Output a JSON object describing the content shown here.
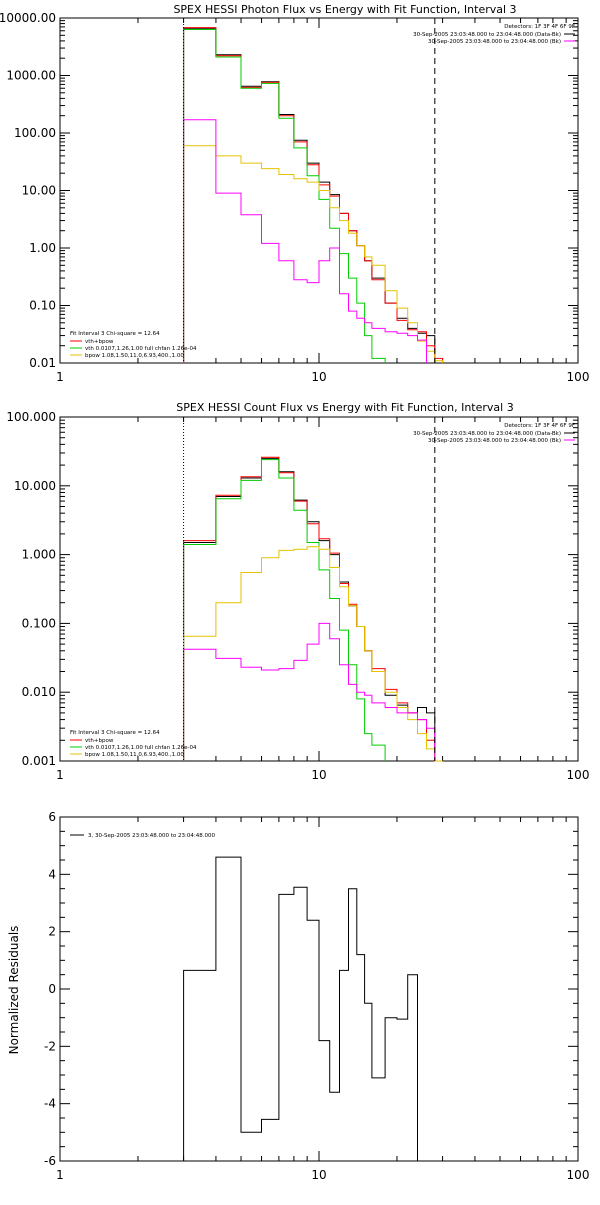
{
  "chart_data": [
    {
      "id": "photon",
      "type": "line",
      "title": "SPEX HESSI Photon Flux vs Energy with Fit Function, Interval 3",
      "xlabel": "",
      "ylabel": "",
      "xscale": "log",
      "yscale": "log",
      "xlim": [
        1,
        100
      ],
      "ylim": [
        0.01,
        10000
      ],
      "xticks": [
        1,
        10,
        100
      ],
      "xtick_labels": [
        "1",
        "10",
        "100"
      ],
      "yticks": [
        0.01,
        0.1,
        1,
        10,
        100,
        1000,
        10000
      ],
      "ytick_labels": [
        "0.01",
        "0.10",
        "1.00",
        "10.00",
        "100.00",
        "1000.00",
        "10000.00"
      ],
      "info_lines": [
        "Detectors: 1F 3F 4F 6F 9F",
        "30-Sep-2005 23:03:48.000 to 23:04:48.000 (Data-Bk)",
        "30-Sep-2005 23:03:48.000 to 23:04:48.000 (Bk)"
      ],
      "info_colors": [
        "",
        "#000000",
        "#ff00ff"
      ],
      "fit_info": "Fit Interval 3   Chi-square = 12.64",
      "legend": [
        "vth+bpow",
        "vth 0.0107,1.26,1.00  full chfan 1.26e-04",
        "bpow 1.08,1.50,11.0,6.93,400.,1.00"
      ],
      "legend_colors": [
        "#ff0000",
        "#00cc00",
        "#e6c200"
      ],
      "vlines": [
        {
          "x": 3.0,
          "style": "dotted"
        },
        {
          "x": 28.0,
          "style": "dashed"
        }
      ],
      "edges": [
        3,
        4,
        5,
        6,
        7,
        8,
        9,
        10,
        11,
        12,
        13,
        14,
        15,
        16,
        18,
        20,
        22,
        24,
        26,
        28,
        30
      ],
      "series": [
        {
          "name": "Data-Bk",
          "color": "#000000",
          "values": [
            6500,
            2300,
            650,
            780,
            210,
            75,
            30,
            14,
            8.5,
            4,
            2,
            1.1,
            0.6,
            0.3,
            0.11,
            0.06,
            0.04,
            0.033,
            0.03,
            null
          ]
        },
        {
          "name": "vth+bpow",
          "color": "#ff0000",
          "values": [
            6800,
            2200,
            620,
            760,
            200,
            70,
            28,
            12.5,
            8,
            4,
            2,
            1.1,
            0.6,
            0.28,
            0.11,
            0.055,
            0.038,
            0.035,
            0.02,
            0.012
          ]
        },
        {
          "name": "vth",
          "color": "#00cc00",
          "values": [
            6300,
            2100,
            600,
            730,
            180,
            55,
            18,
            7,
            2.2,
            0.8,
            0.3,
            0.11,
            0.03,
            0.012,
            null,
            null,
            null,
            null,
            null,
            null
          ]
        },
        {
          "name": "bpow",
          "color": "#e6c200",
          "values": [
            60,
            40,
            30,
            24,
            19,
            16,
            14,
            10,
            5,
            3,
            1.8,
            1.1,
            0.7,
            0.5,
            0.18,
            0.09,
            0.05,
            0.024,
            0.016,
            0.011
          ]
        },
        {
          "name": "Bk",
          "color": "#ff00ff",
          "values": [
            170,
            9,
            3.8,
            1.2,
            0.6,
            0.28,
            0.25,
            0.6,
            1.0,
            0.16,
            0.08,
            0.06,
            0.05,
            0.04,
            0.035,
            0.033,
            0.03,
            0.025,
            null,
            null
          ]
        }
      ]
    },
    {
      "id": "count",
      "type": "line",
      "title": "SPEX HESSI Count Flux vs Energy with Fit Function, Interval 3",
      "xlabel": "",
      "ylabel": "",
      "xscale": "log",
      "yscale": "log",
      "xlim": [
        1,
        100
      ],
      "ylim": [
        0.001,
        100
      ],
      "xticks": [
        1,
        10,
        100
      ],
      "xtick_labels": [
        "1",
        "10",
        "100"
      ],
      "yticks": [
        0.001,
        0.01,
        0.1,
        1,
        10,
        100
      ],
      "ytick_labels": [
        "0.001",
        "0.010",
        "0.100",
        "1.000",
        "10.000",
        "100.000"
      ],
      "info_lines": [
        "Detectors: 1F 3F 4F 6F 9F",
        "30-Sep-2005 23:03:48.000 to 23:04:48.000 (Data-Bk)",
        "30-Sep-2005 23:03:48.000 to 23:04:48.000 (Bk)"
      ],
      "info_colors": [
        "",
        "#000000",
        "#ff00ff"
      ],
      "fit_info": "Fit Interval 3   Chi-square = 12.64",
      "legend": [
        "vth+bpow",
        "vth 0.0107,1.26,1.00  full chfan 1.26e-04",
        "bpow 1.08,1.50,11.0,6.93,400.,1.00"
      ],
      "legend_colors": [
        "#ff0000",
        "#00cc00",
        "#e6c200"
      ],
      "vlines": [
        {
          "x": 3.0,
          "style": "dotted"
        },
        {
          "x": 28.0,
          "style": "dashed"
        }
      ],
      "edges": [
        3,
        4,
        5,
        6,
        7,
        8,
        9,
        10,
        11,
        12,
        13,
        14,
        15,
        16,
        18,
        20,
        22,
        24,
        26,
        28,
        30
      ],
      "series": [
        {
          "name": "Data-Bk",
          "color": "#000000",
          "values": [
            1.5,
            7,
            13,
            25,
            16,
            6.2,
            3,
            1.6,
            1,
            0.4,
            0.18,
            0.09,
            0.04,
            0.02,
            0.009,
            0.0065,
            0.005,
            0.006,
            0.005,
            null
          ]
        },
        {
          "name": "vth+bpow",
          "color": "#ff0000",
          "values": [
            1.6,
            7.3,
            13.5,
            26,
            15.5,
            6,
            2.8,
            1.7,
            1.05,
            0.38,
            0.19,
            0.09,
            0.04,
            0.022,
            0.011,
            0.007,
            0.005,
            0.004,
            0.002,
            0.001
          ]
        },
        {
          "name": "vth",
          "color": "#00cc00",
          "values": [
            1.4,
            6.5,
            12,
            24,
            13,
            4.4,
            1.5,
            0.6,
            0.23,
            0.08,
            0.025,
            0.008,
            0.0025,
            0.0017,
            null,
            null,
            null,
            null,
            null,
            null
          ]
        },
        {
          "name": "bpow",
          "color": "#e6c200",
          "values": [
            0.065,
            0.2,
            0.55,
            0.9,
            1.15,
            1.2,
            1.3,
            1.2,
            0.65,
            0.34,
            0.18,
            0.09,
            0.04,
            0.02,
            0.01,
            0.006,
            0.004,
            0.0025,
            0.0015,
            0.001
          ]
        },
        {
          "name": "Bk",
          "color": "#ff00ff",
          "values": [
            0.042,
            0.031,
            0.023,
            0.021,
            0.022,
            0.029,
            0.05,
            0.1,
            0.06,
            0.025,
            0.013,
            0.01,
            0.009,
            0.007,
            0.006,
            0.005,
            0.005,
            0.004,
            0.003,
            null
          ]
        }
      ]
    },
    {
      "id": "residuals",
      "type": "line",
      "title": "",
      "xlabel": "",
      "ylabel": "Normalized Residuals",
      "xscale": "log",
      "yscale": "linear",
      "xlim": [
        1,
        100
      ],
      "ylim": [
        -6,
        6
      ],
      "xticks": [
        1,
        10,
        100
      ],
      "xtick_labels": [
        "1",
        "10",
        "100"
      ],
      "yticks": [
        -6,
        -4,
        -2,
        0,
        2,
        4,
        6
      ],
      "ytick_labels": [
        "-6",
        "-4",
        "-2",
        "0",
        "2",
        "4",
        "6"
      ],
      "legend": [
        "3, 30-Sep-2005 23:03:48.000 to 23:04:48.000"
      ],
      "legend_colors": [
        "#000000"
      ],
      "edges": [
        3,
        4,
        5,
        6,
        7,
        8,
        9,
        10,
        11,
        12,
        13,
        14,
        15,
        16,
        18,
        20,
        22,
        24,
        26,
        28
      ],
      "series": [
        {
          "name": "3",
          "color": "#000000",
          "values": [
            0.65,
            4.6,
            -5.0,
            -4.55,
            3.3,
            3.55,
            2.4,
            -1.8,
            -3.6,
            0.65,
            3.5,
            1.2,
            -0.5,
            -3.1,
            -1.0,
            -1.05,
            0.5
          ]
        }
      ]
    }
  ]
}
